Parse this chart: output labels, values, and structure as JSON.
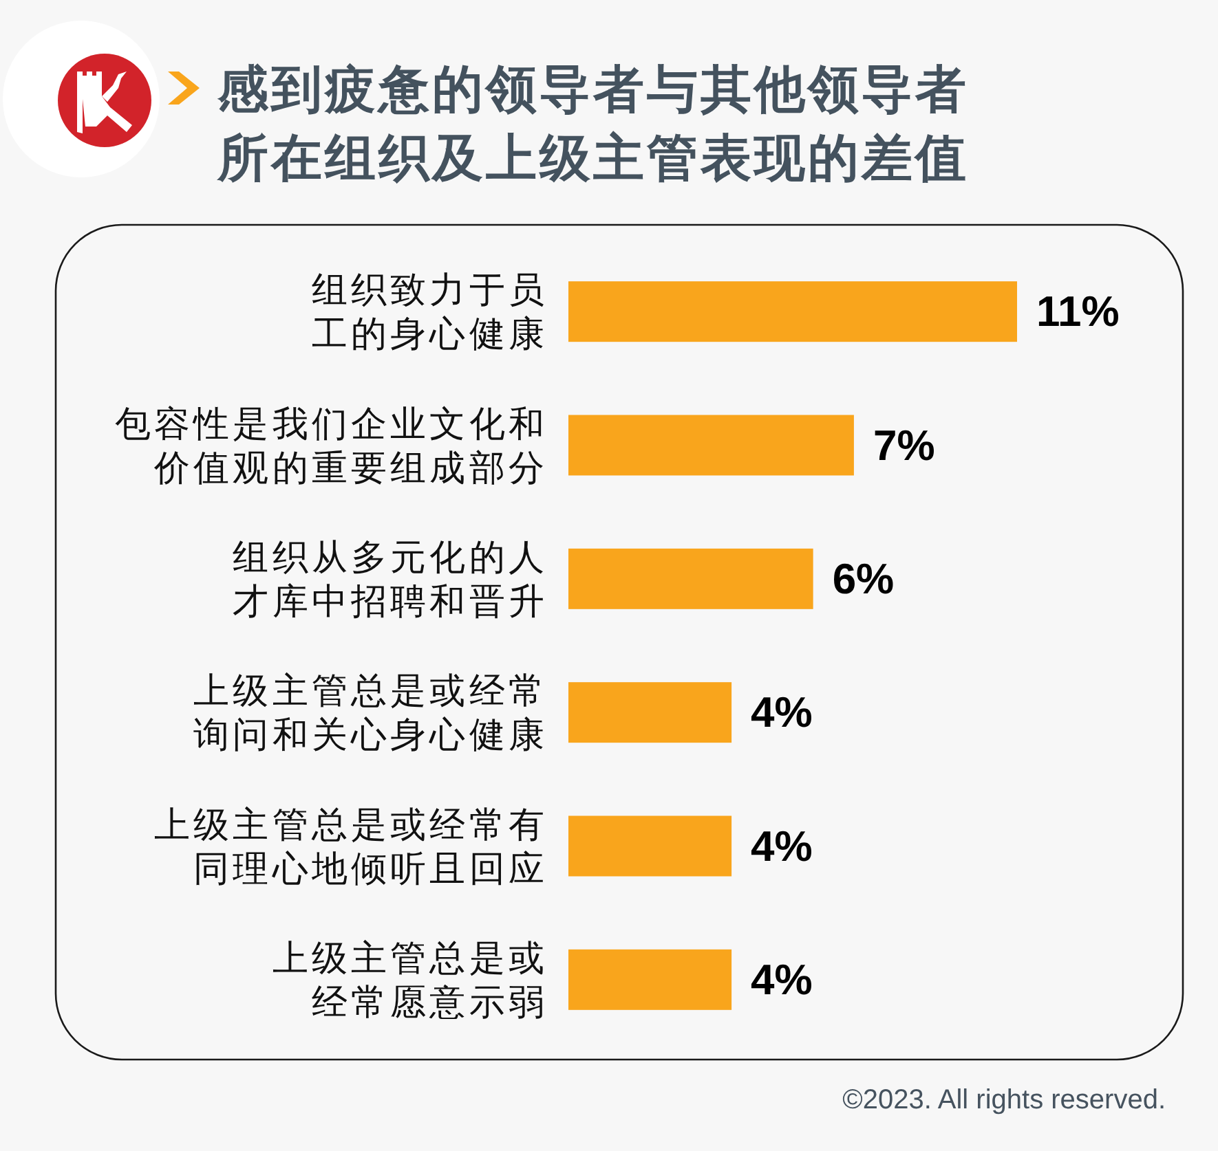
{
  "chart_data": {
    "type": "bar",
    "orientation": "horizontal",
    "title": "感到疲惫的领导者与其他领导者所在组织及上级主管表现的差值",
    "categories": [
      "组织致力于员工的身心健康",
      "包容性是我们企业文化和价值观的重要组成部分",
      "组织从多元化的人才库中招聘和晋升",
      "上级主管总是或经常询问和关心身心健康",
      "上级主管总是或经常有同理心地倾听且回应",
      "上级主管总是或经常愿意示弱"
    ],
    "values": [
      11,
      7,
      6,
      4,
      4,
      4
    ],
    "color": "#f9a51c",
    "value_labels": [
      "11%",
      "7%",
      "6%",
      "4%",
      "4%",
      "4%"
    ],
    "annotations": [
      "©2023. All rights reserved."
    ]
  }
}
